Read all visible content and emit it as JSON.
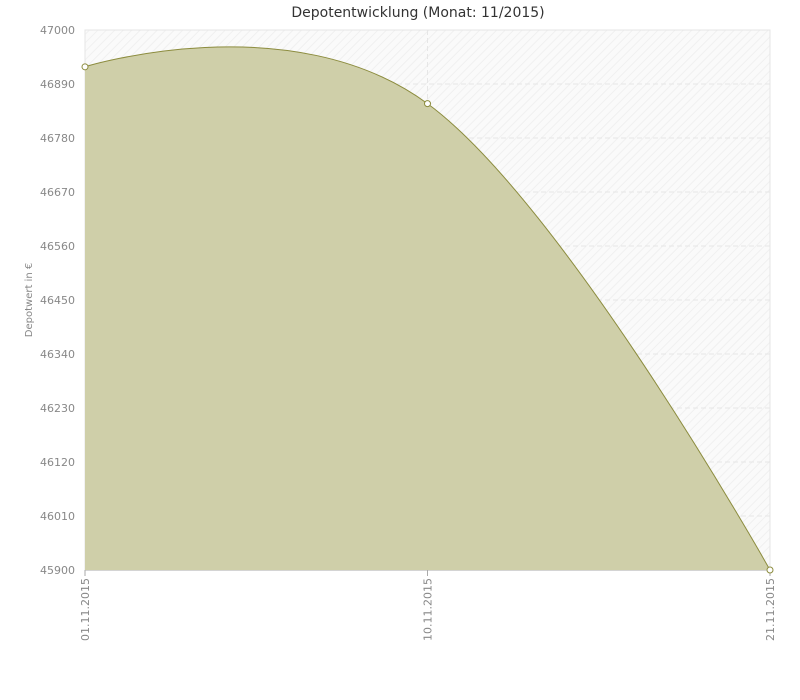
{
  "chart_data": {
    "type": "area",
    "title": "Depotentwicklung (Monat: 11/2015)",
    "y_label": "Depotwert in €",
    "categories": [
      "01.11.2015",
      "10.11.2015",
      "21.11.2015"
    ],
    "series": [
      {
        "name": "Depotwert",
        "color": "#8c8c3e",
        "values": [
          46925,
          46850,
          45900
        ]
      }
    ],
    "ylim": [
      45900,
      47000
    ],
    "yticks": [
      45900,
      46010,
      46120,
      46230,
      46340,
      46450,
      46560,
      46670,
      46780,
      46890,
      47000
    ],
    "grid": true,
    "smooth": true
  }
}
